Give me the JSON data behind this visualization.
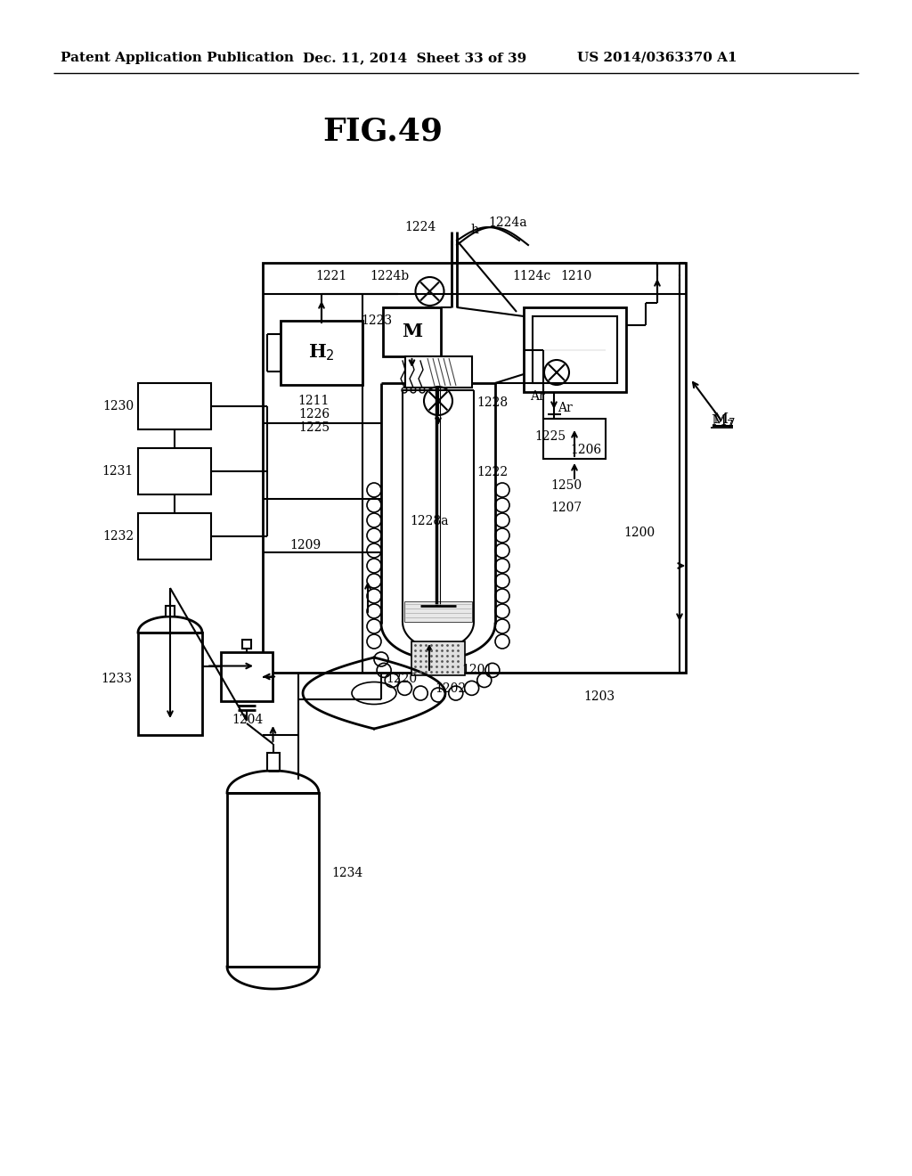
{
  "bg_color": "#ffffff",
  "line_color": "#000000",
  "header_left": "Patent Application Publication",
  "header_center": "Dec. 11, 2014  Sheet 33 of 39",
  "header_right": "US 2014/0363370 A1",
  "title": "FIG.49"
}
